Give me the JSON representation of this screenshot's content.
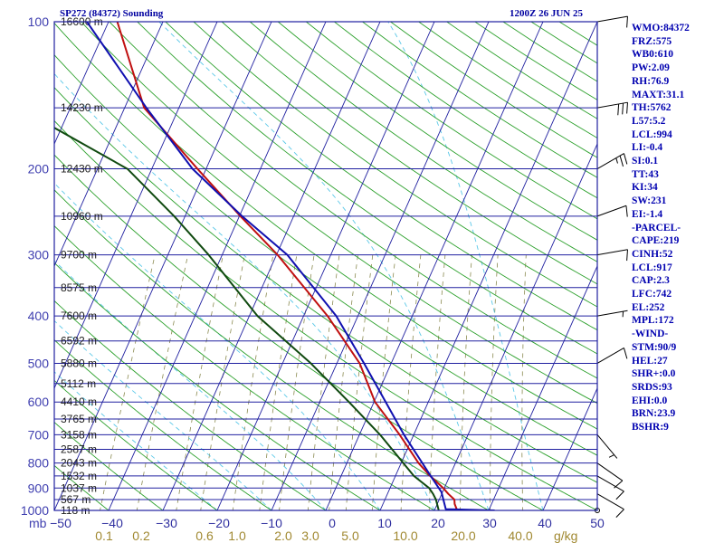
{
  "header": {
    "station": "SP272 (84372) Sounding",
    "time": "1200Z 26 JUN 25"
  },
  "indices": [
    "WMO:84372",
    "FRZ:575",
    "WB0:610",
    "PW:2.09",
    "RH:76.9",
    "MAXT:31.1",
    "TH:5762",
    "L57:5.2",
    "LCL:994",
    "LI:-0.4",
    "SI:0.1",
    "TT:43",
    "KI:34",
    "SW:231",
    "EI:-1.4",
    "-PARCEL-",
    "CAPE:219",
    "CINH:52",
    "LCL:917",
    "CAP:2.3",
    "LFC:742",
    "EL:252",
    "MPL:172",
    "-WIND-",
    "STM:90/9",
    "HEL:27",
    "SHR+:0.0",
    "SRDS:93",
    "EHI:0.0",
    "BRN:23.9",
    "BSHR:9"
  ],
  "colors": {
    "isobar": "#2020a0",
    "isotherm": "#2020a0",
    "dry_adiabat": "#2ca02c",
    "moist_adiabat": "#5ac8e8",
    "mixing_ratio": "#8a8a50",
    "temperature": "#c01010",
    "dewpoint": "#104a10",
    "parcel": "#1010b0",
    "wind_barb": "#000000"
  },
  "chart_data": {
    "type": "line",
    "chart_kind": "skew-T log-p sounding",
    "y_scale": "log",
    "ylim": [
      1000,
      100
    ],
    "xlim": [
      -50,
      50
    ],
    "pressure_ticks": [
      1000,
      900,
      800,
      700,
      600,
      500,
      400,
      300,
      200,
      100
    ],
    "pressure_unit_label": "mb",
    "temperature_ticks": [
      -50,
      -40,
      -30,
      -20,
      -10,
      0,
      10,
      20,
      30,
      40,
      50
    ],
    "mixing_ratio_unit_label": "g/kg",
    "mixing_ratio_ticks": [
      "0.1",
      "0.2",
      "0.6",
      "1.0",
      "2.0",
      "3.0",
      "5.0",
      "10.0",
      "20.0",
      "40.0"
    ],
    "height_labels": [
      {
        "p": 1000,
        "label": "118 m"
      },
      {
        "p": 950,
        "label": "567 m"
      },
      {
        "p": 900,
        "label": "1037 m"
      },
      {
        "p": 850,
        "label": "1532 m"
      },
      {
        "p": 800,
        "label": "2043 m"
      },
      {
        "p": 750,
        "label": "2587 m"
      },
      {
        "p": 700,
        "label": "3158 m"
      },
      {
        "p": 650,
        "label": "3765 m"
      },
      {
        "p": 600,
        "label": "4410 m"
      },
      {
        "p": 550,
        "label": "5112 m"
      },
      {
        "p": 500,
        "label": "5880 m"
      },
      {
        "p": 450,
        "label": "6592 m"
      },
      {
        "p": 400,
        "label": "7600 m"
      },
      {
        "p": 350,
        "label": "8575 m"
      },
      {
        "p": 300,
        "label": "9700 m"
      },
      {
        "p": 250,
        "label": "10960 m"
      },
      {
        "p": 200,
        "label": "12430 m"
      },
      {
        "p": 150,
        "label": "14230 m"
      },
      {
        "p": 100,
        "label": "16600 m"
      }
    ],
    "series": [
      {
        "key": "temperature",
        "points": [
          [
            1000,
            24.2
          ],
          [
            970,
            23.2
          ],
          [
            950,
            22.8
          ],
          [
            925,
            21.2
          ],
          [
            900,
            19.8
          ],
          [
            850,
            16.4
          ],
          [
            800,
            13.2
          ],
          [
            700,
            7.4
          ],
          [
            600,
            0.2
          ],
          [
            500,
            -5.8
          ],
          [
            400,
            -15.6
          ],
          [
            300,
            -29.8
          ],
          [
            250,
            -39.8
          ],
          [
            200,
            -51.6
          ],
          [
            150,
            -66.4
          ],
          [
            100,
            -78.4
          ]
        ]
      },
      {
        "key": "dewpoint",
        "points": [
          [
            1000,
            20.8
          ],
          [
            950,
            19.4
          ],
          [
            925,
            18.4
          ],
          [
            900,
            17.2
          ],
          [
            850,
            13.4
          ],
          [
            800,
            10.4
          ],
          [
            700,
            3.8
          ],
          [
            600,
            -4.6
          ],
          [
            500,
            -14.8
          ],
          [
            400,
            -28.5
          ],
          [
            300,
            -42.5
          ],
          [
            250,
            -52.0
          ],
          [
            200,
            -64.5
          ],
          [
            150,
            -89.5
          ],
          [
            100,
            -92.0
          ]
        ]
      },
      {
        "key": "parcel",
        "points": [
          [
            1000,
            31.1
          ],
          [
            994,
            22.0
          ],
          [
            917,
            19.8
          ],
          [
            850,
            16.5
          ],
          [
            700,
            8.2
          ],
          [
            500,
            -5.0
          ],
          [
            400,
            -14.0
          ],
          [
            300,
            -28.0
          ],
          [
            250,
            -39.5
          ],
          [
            200,
            -52.5
          ],
          [
            150,
            -66.0
          ],
          [
            100,
            -84.0
          ]
        ]
      }
    ],
    "wind_barbs": [
      {
        "p": 1000,
        "dir": 90,
        "spd": 0
      },
      {
        "p": 925,
        "dir": 120,
        "spd": 10
      },
      {
        "p": 850,
        "dir": 120,
        "spd": 10
      },
      {
        "p": 800,
        "dir": 125,
        "spd": 10
      },
      {
        "p": 700,
        "dir": 140,
        "spd": 5
      },
      {
        "p": 500,
        "dir": 60,
        "spd": 10
      },
      {
        "p": 400,
        "dir": 80,
        "spd": 5
      },
      {
        "p": 300,
        "dir": 80,
        "spd": 10
      },
      {
        "p": 250,
        "dir": 70,
        "spd": 10
      },
      {
        "p": 200,
        "dir": 60,
        "spd": 25
      },
      {
        "p": 150,
        "dir": 80,
        "spd": 30
      },
      {
        "p": 100,
        "dir": 80,
        "spd": 10
      }
    ]
  }
}
